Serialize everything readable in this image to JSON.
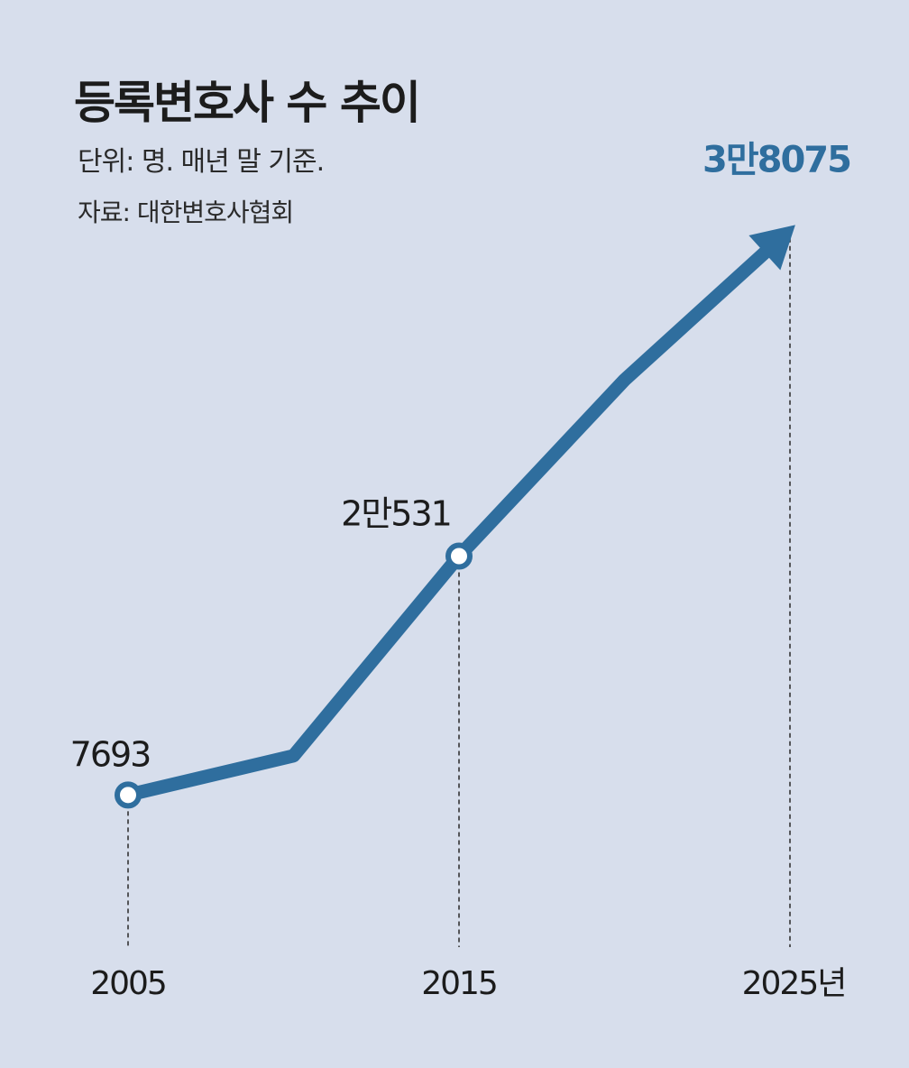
{
  "title": "등록변호사 수 추이",
  "unit_note": "단위: 명. 매년 말 기준.",
  "source_note": "자료: 대한변호사협회",
  "colors": {
    "background": "#d7deec",
    "line": "#2f6e9e",
    "text": "#1c1c1c",
    "highlight_text": "#2f6e9e"
  },
  "chart_data": {
    "type": "line",
    "title": "등록변호사 수 추이",
    "x": [
      2005,
      2010,
      2015,
      2020,
      2025
    ],
    "values": [
      7693,
      9800,
      20531,
      30000,
      38075
    ],
    "labeled_points": [
      {
        "x": 2005,
        "label": "7693",
        "marker": "circle"
      },
      {
        "x": 2015,
        "label": "2만531",
        "marker": "circle"
      },
      {
        "x": 2025,
        "label": "3만8075",
        "marker": "arrow",
        "highlight": true
      }
    ],
    "x_tick_labels": [
      "2005",
      "2015",
      "2025년"
    ],
    "ylim": [
      0,
      40000
    ],
    "grid": false,
    "legend": "none"
  }
}
